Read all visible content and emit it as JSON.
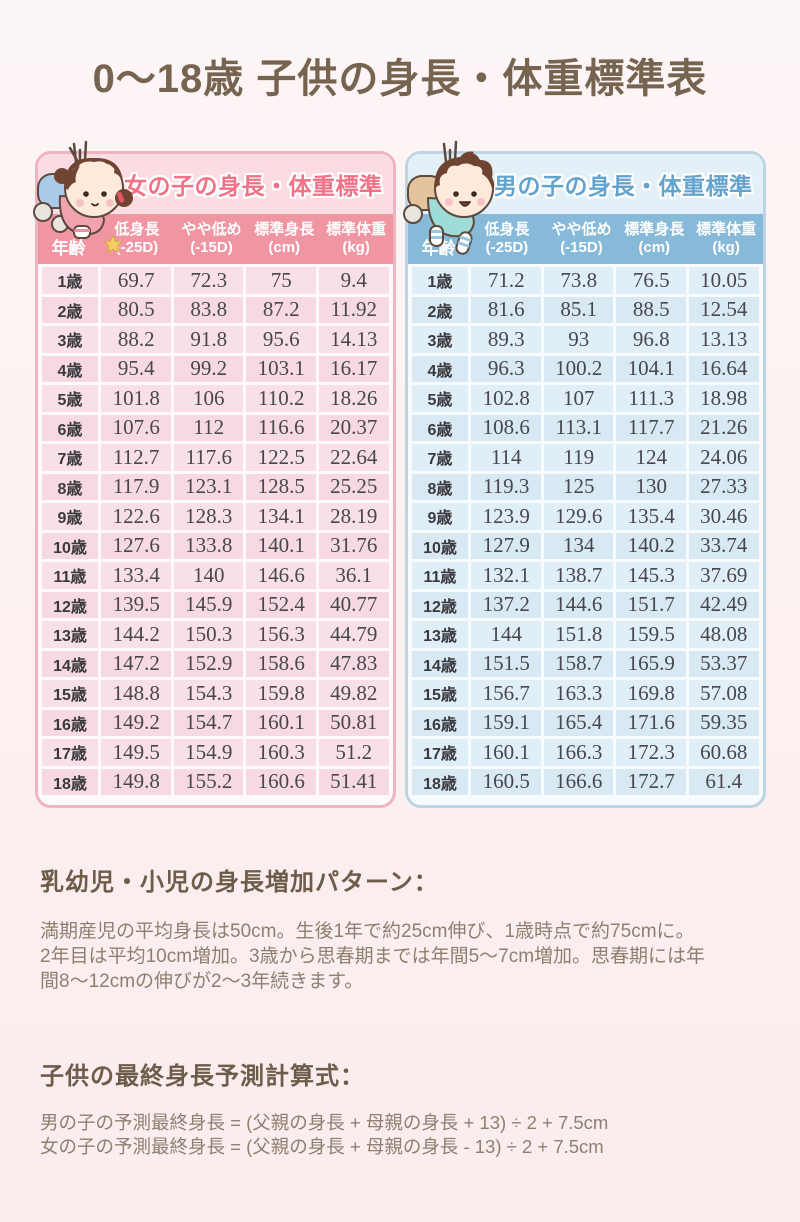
{
  "page": {
    "title": "0～18歳 子供の身長・体重標準表",
    "colors": {
      "background": "#fcf0f0",
      "title_text": "#776450",
      "girls_accent": "#ef7287",
      "girls_band": "#fbdce3",
      "girls_header": "#f096a3",
      "girls_cell": "#f9e0e6",
      "girls_border": "#efb4bf",
      "boys_accent": "#64a3cd",
      "boys_band": "#e3f0f8",
      "boys_header": "#87bad8",
      "boys_cell": "#e0eef7",
      "boys_border": "#bcd4e3",
      "body_text": "#8e7f70",
      "heading_text": "#6d5c49"
    }
  },
  "tables": [
    {
      "id": "girls",
      "mascot_icon": "girl-mascot-icon",
      "title": "女の子の身長・体重標準",
      "age_header": "年齢",
      "columns": [
        {
          "line1": "低身長",
          "line2": "(-25D)"
        },
        {
          "line1": "やや低め",
          "line2": "(-15D)"
        },
        {
          "line1": "標準身長",
          "line2": "(cm)"
        },
        {
          "line1": "標準体重",
          "line2": "(kg)"
        }
      ],
      "rows": [
        {
          "age": "1歳",
          "values": [
            "69.7",
            "72.3",
            "75",
            "9.4"
          ]
        },
        {
          "age": "2歳",
          "values": [
            "80.5",
            "83.8",
            "87.2",
            "11.92"
          ]
        },
        {
          "age": "3歳",
          "values": [
            "88.2",
            "91.8",
            "95.6",
            "14.13"
          ]
        },
        {
          "age": "4歳",
          "values": [
            "95.4",
            "99.2",
            "103.1",
            "16.17"
          ]
        },
        {
          "age": "5歳",
          "values": [
            "101.8",
            "106",
            "110.2",
            "18.26"
          ]
        },
        {
          "age": "6歳",
          "values": [
            "107.6",
            "112",
            "116.6",
            "20.37"
          ]
        },
        {
          "age": "7歳",
          "values": [
            "112.7",
            "117.6",
            "122.5",
            "22.64"
          ]
        },
        {
          "age": "8歳",
          "values": [
            "117.9",
            "123.1",
            "128.5",
            "25.25"
          ]
        },
        {
          "age": "9歳",
          "values": [
            "122.6",
            "128.3",
            "134.1",
            "28.19"
          ]
        },
        {
          "age": "10歳",
          "values": [
            "127.6",
            "133.8",
            "140.1",
            "31.76"
          ]
        },
        {
          "age": "11歳",
          "values": [
            "133.4",
            "140",
            "146.6",
            "36.1"
          ]
        },
        {
          "age": "12歳",
          "values": [
            "139.5",
            "145.9",
            "152.4",
            "40.77"
          ]
        },
        {
          "age": "13歳",
          "values": [
            "144.2",
            "150.3",
            "156.3",
            "44.79"
          ]
        },
        {
          "age": "14歳",
          "values": [
            "147.2",
            "152.9",
            "158.6",
            "47.83"
          ]
        },
        {
          "age": "15歳",
          "values": [
            "148.8",
            "154.3",
            "159.8",
            "49.82"
          ]
        },
        {
          "age": "16歳",
          "values": [
            "149.2",
            "154.7",
            "160.1",
            "50.81"
          ]
        },
        {
          "age": "17歳",
          "values": [
            "149.5",
            "154.9",
            "160.3",
            "51.2"
          ]
        },
        {
          "age": "18歳",
          "values": [
            "149.8",
            "155.2",
            "160.6",
            "51.41"
          ]
        }
      ]
    },
    {
      "id": "boys",
      "mascot_icon": "boy-mascot-icon",
      "title": "男の子の身長・体重標準",
      "age_header": "年齢",
      "columns": [
        {
          "line1": "低身長",
          "line2": "(-25D)"
        },
        {
          "line1": "やや低め",
          "line2": "(-15D)"
        },
        {
          "line1": "標準身長",
          "line2": "(cm)"
        },
        {
          "line1": "標準体重",
          "line2": "(kg)"
        }
      ],
      "rows": [
        {
          "age": "1歳",
          "values": [
            "71.2",
            "73.8",
            "76.5",
            "10.05"
          ]
        },
        {
          "age": "2歳",
          "values": [
            "81.6",
            "85.1",
            "88.5",
            "12.54"
          ]
        },
        {
          "age": "3歳",
          "values": [
            "89.3",
            "93",
            "96.8",
            "13.13"
          ]
        },
        {
          "age": "4歳",
          "values": [
            "96.3",
            "100.2",
            "104.1",
            "16.64"
          ]
        },
        {
          "age": "5歳",
          "values": [
            "102.8",
            "107",
            "111.3",
            "18.98"
          ]
        },
        {
          "age": "6歳",
          "values": [
            "108.6",
            "113.1",
            "117.7",
            "21.26"
          ]
        },
        {
          "age": "7歳",
          "values": [
            "114",
            "119",
            "124",
            "24.06"
          ]
        },
        {
          "age": "8歳",
          "values": [
            "119.3",
            "125",
            "130",
            "27.33"
          ]
        },
        {
          "age": "9歳",
          "values": [
            "123.9",
            "129.6",
            "135.4",
            "30.46"
          ]
        },
        {
          "age": "10歳",
          "values": [
            "127.9",
            "134",
            "140.2",
            "33.74"
          ]
        },
        {
          "age": "11歳",
          "values": [
            "132.1",
            "138.7",
            "145.3",
            "37.69"
          ]
        },
        {
          "age": "12歳",
          "values": [
            "137.2",
            "144.6",
            "151.7",
            "42.49"
          ]
        },
        {
          "age": "13歳",
          "values": [
            "144",
            "151.8",
            "159.5",
            "48.08"
          ]
        },
        {
          "age": "14歳",
          "values": [
            "151.5",
            "158.7",
            "165.9",
            "53.37"
          ]
        },
        {
          "age": "15歳",
          "values": [
            "156.7",
            "163.3",
            "169.8",
            "57.08"
          ]
        },
        {
          "age": "16歳",
          "values": [
            "159.1",
            "165.4",
            "171.6",
            "59.35"
          ]
        },
        {
          "age": "17歳",
          "values": [
            "160.1",
            "166.3",
            "172.3",
            "60.68"
          ]
        },
        {
          "age": "18歳",
          "values": [
            "160.5",
            "166.6",
            "172.7",
            "61.4"
          ]
        }
      ]
    }
  ],
  "sections": [
    {
      "heading": "乳幼児・小児の身長増加パターン：",
      "body_lines": [
        "満期産児の平均身長は50cm。生後1年で約25cm伸び、1歳時点で約75cmに。",
        "2年目は平均10cm増加。3歳から思春期までは年間5～7cm増加。思春期には年",
        "間8～12cmの伸びが2～3年続きます。"
      ]
    },
    {
      "heading": "子供の最終身長予測計算式：",
      "body_lines": [
        "男の子の予測最終身長 = (父親の身長 + 母親の身長 + 13) ÷ 2 + 7.5cm",
        "女の子の予測最終身長 = (父親の身長 + 母親の身長 - 13) ÷ 2 + 7.5cm"
      ]
    }
  ]
}
